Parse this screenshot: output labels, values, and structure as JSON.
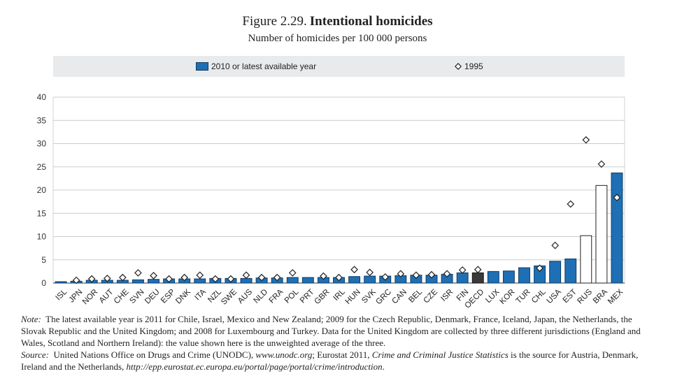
{
  "title": {
    "figure": "Figure 2.29.",
    "name": "Intentional homicides"
  },
  "subtitle": "Number of homicides per 100 000 persons",
  "legend": {
    "bar": "2010 or latest available year",
    "diamond": "1995"
  },
  "colors": {
    "bar": "#1f6fb4",
    "bar_oecd": "#3a3a3a",
    "bar_open": "#ffffff",
    "diamond": "#ffffff"
  },
  "chart_data": {
    "type": "bar",
    "ylim": [
      0,
      40
    ],
    "yticks": [
      0,
      5,
      10,
      15,
      20,
      25,
      30,
      35,
      40
    ],
    "grid": true,
    "legend_position": "top",
    "categories": [
      "ISL",
      "JPN",
      "NOR",
      "AUT",
      "CHE",
      "SVN",
      "DEU",
      "ESP",
      "DNK",
      "ITA",
      "NZL",
      "SWE",
      "AUS",
      "NLD",
      "FRA",
      "POL",
      "PRT",
      "GBR",
      "IRL",
      "HUN",
      "SVK",
      "GRC",
      "CAN",
      "BEL",
      "CZE",
      "ISR",
      "FIN",
      "OECD",
      "LUX",
      "KOR",
      "TUR",
      "CHL",
      "USA",
      "EST",
      "RUS",
      "BRA",
      "MEX"
    ],
    "series": [
      {
        "name": "2010 or latest available year",
        "values": [
          0.3,
          0.4,
          0.6,
          0.6,
          0.6,
          0.7,
          0.8,
          0.9,
          0.9,
          0.9,
          1.0,
          1.0,
          1.0,
          1.1,
          1.1,
          1.2,
          1.2,
          1.2,
          1.2,
          1.4,
          1.5,
          1.5,
          1.6,
          1.7,
          1.7,
          1.9,
          2.2,
          2.2,
          2.5,
          2.6,
          3.3,
          3.7,
          4.7,
          5.2,
          10.2,
          21.0,
          23.7
        ]
      },
      {
        "name": "1995",
        "values": [
          null,
          0.6,
          0.9,
          1.0,
          1.2,
          2.2,
          1.6,
          0.9,
          1.2,
          1.7,
          0.9,
          0.9,
          1.7,
          1.2,
          1.2,
          2.2,
          null,
          1.5,
          1.2,
          2.9,
          2.3,
          1.3,
          2.0,
          1.7,
          1.8,
          2.0,
          2.8,
          2.9,
          null,
          null,
          null,
          3.2,
          8.1,
          17.0,
          30.8,
          25.6,
          18.4
        ]
      }
    ],
    "bar_styles": {
      "OECD": "dark",
      "RUS": "open",
      "BRA": "open"
    }
  },
  "note": {
    "label": "Note:",
    "text": "The latest available year is 2011 for Chile, Israel, Mexico and New Zealand; 2009 for the Czech Republic, Denmark, France, Iceland, Japan, the Netherlands, the Slovak Republic and the United Kingdom; and 2008 for Luxembourg and Turkey. Data for the United Kingdom are collected by three different jurisdictions (England and Wales, Scotland and Northern Ireland): the value shown here is the unweighted average of the three.",
    "source_label": "Source:",
    "source_1": "United Nations Office on Drugs and Crime (UNODC), ",
    "source_url_1": "www.unodc.org",
    "source_2": "; Eurostat 2011, ",
    "source_title": "Crime and Criminal Justice Statistics",
    "source_3": " is the source for Austria, Denmark, Ireland and the Netherlands, ",
    "source_url_2": "http://epp.eurostat.ec.europa.eu/portal/page/portal/crime/introduction",
    "source_end": "."
  }
}
